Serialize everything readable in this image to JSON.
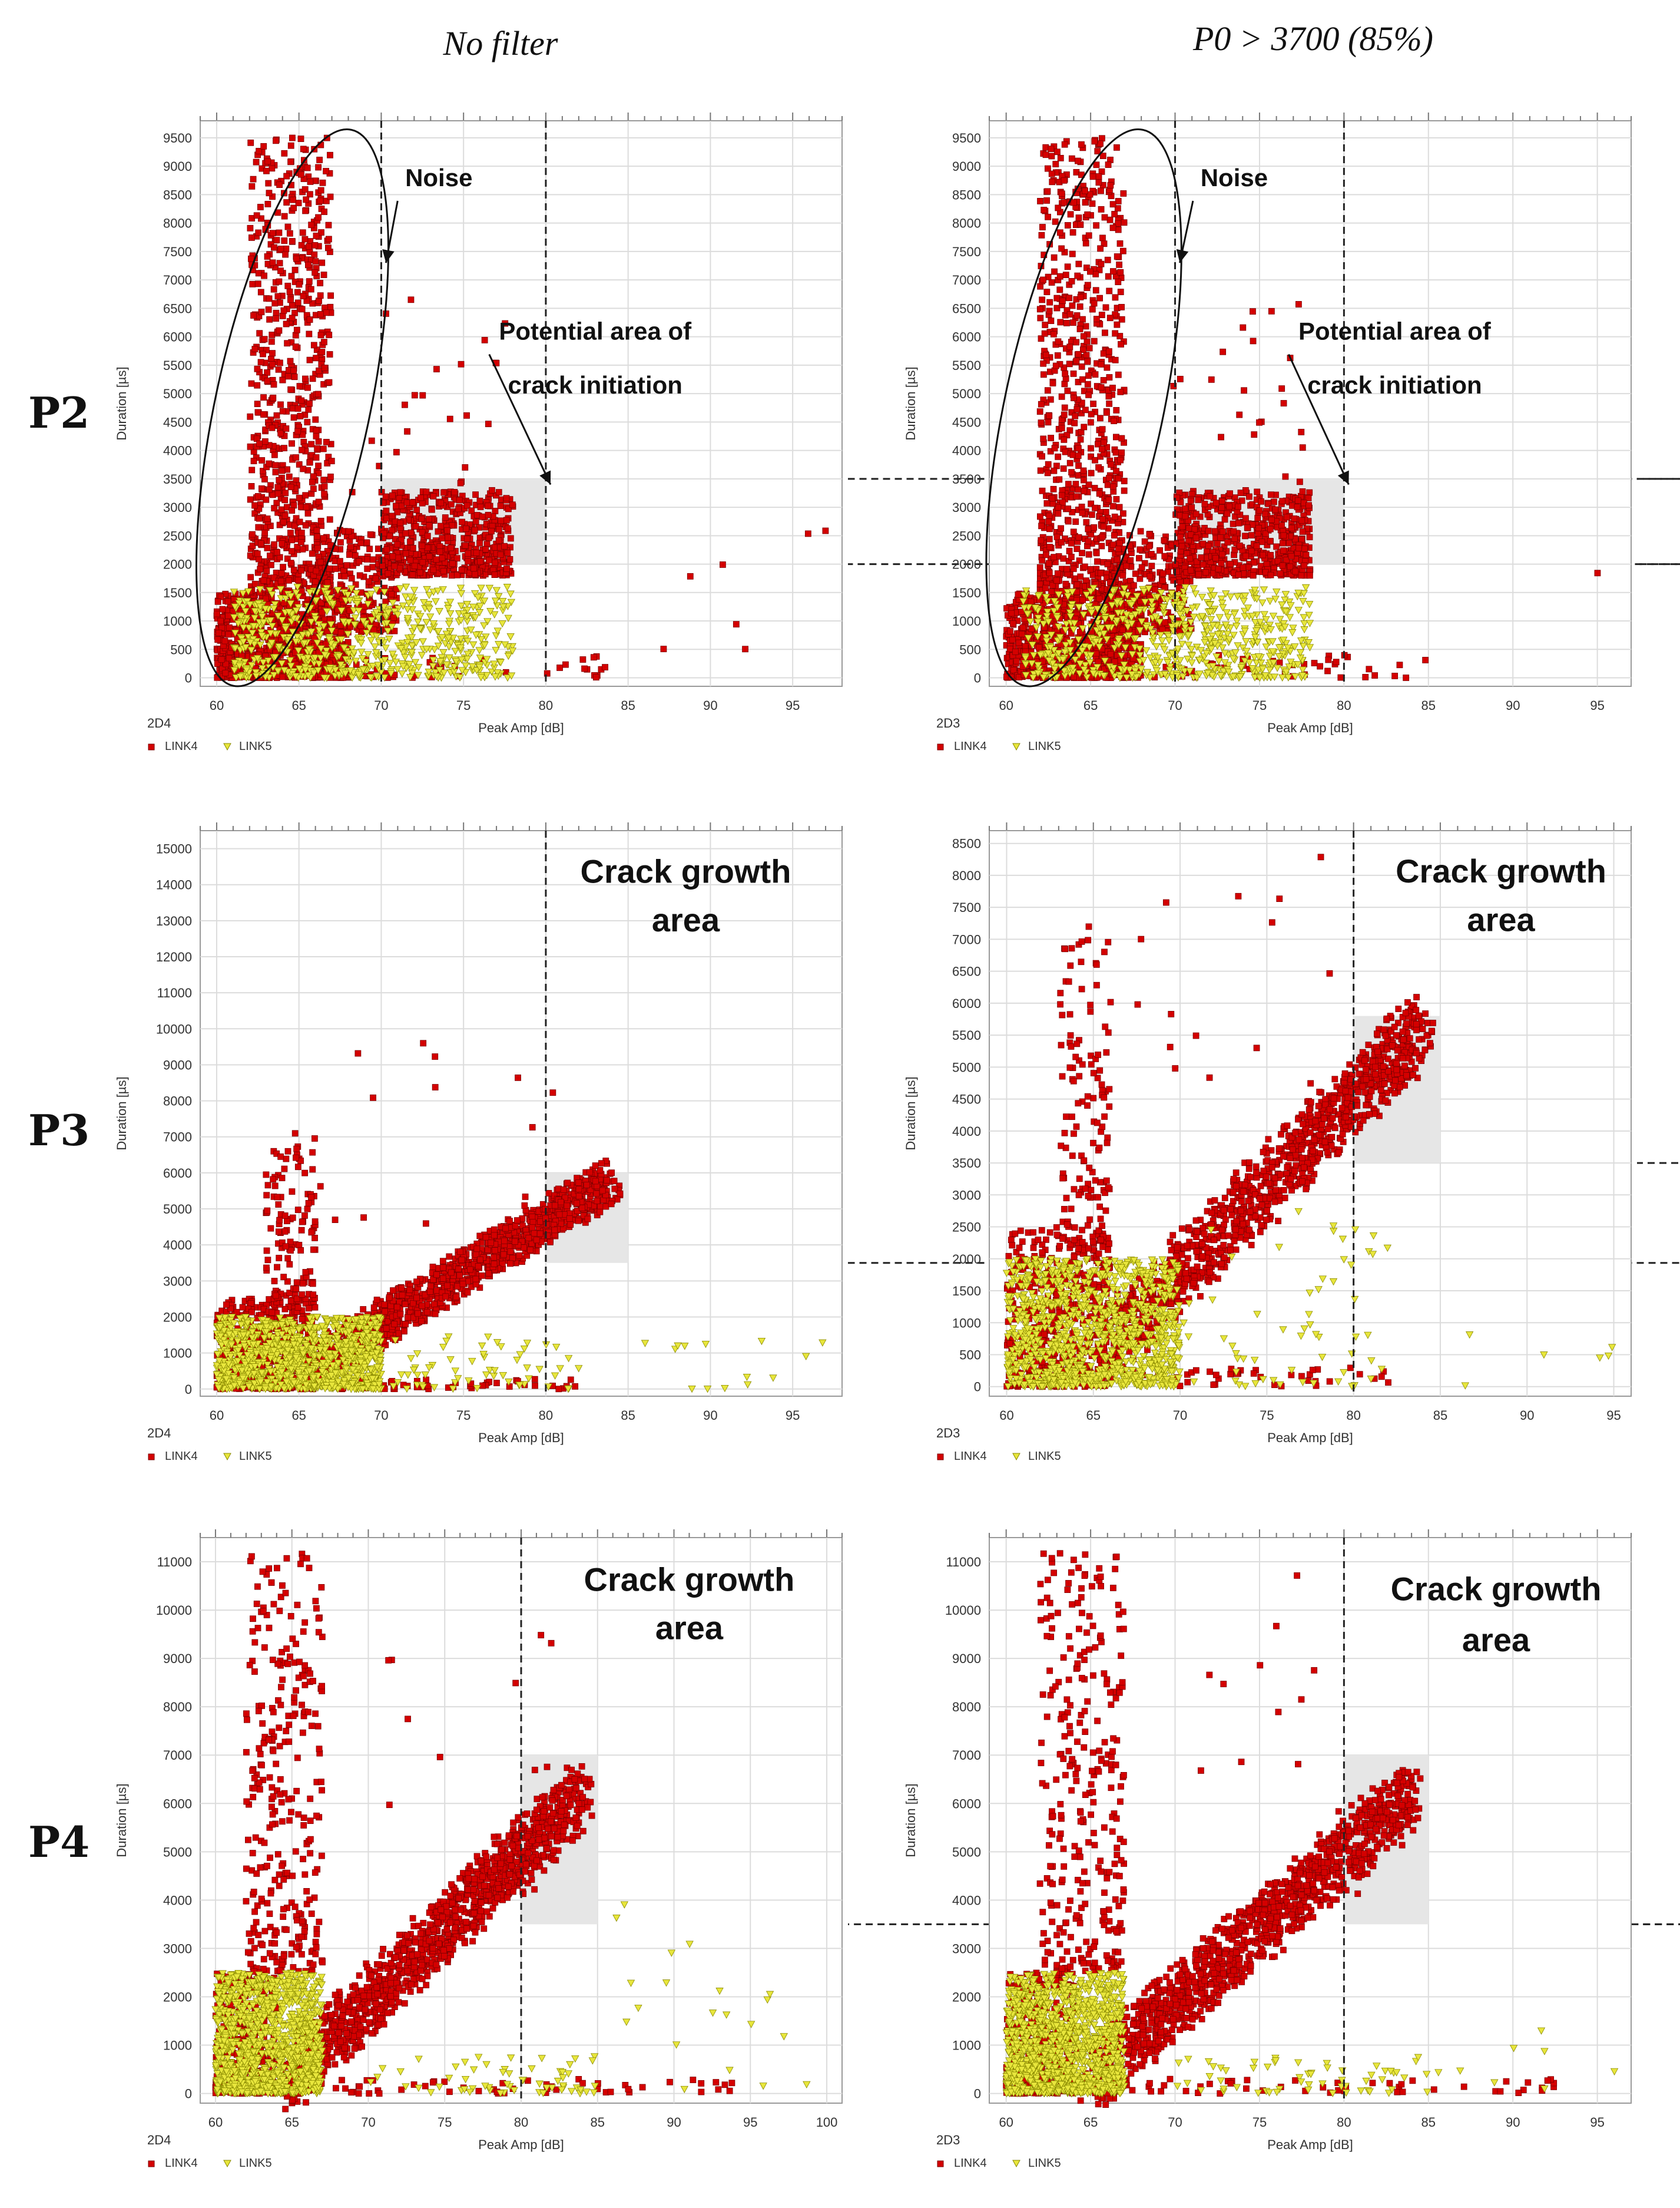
{
  "column_headers": [
    "No filter",
    "P0 > 3700 (85%)"
  ],
  "row_labels": [
    "P2",
    "P3",
    "P4"
  ],
  "colors": {
    "link4": "#d40000",
    "link5": "#e8e63c",
    "link4_stroke": "#7a0000",
    "link5_stroke": "#8a8a00",
    "highlight": "#e6e6e6"
  },
  "chart_data": [
    {
      "type": "scatter",
      "row": "P2",
      "column": "No filter",
      "corner_label": "2D4",
      "xlabel": "Peak Amp [dB]",
      "ylabel": "Duration [µs]",
      "xlim": [
        59,
        98
      ],
      "ylim": [
        -150,
        9800
      ],
      "xticks": [
        60,
        65,
        70,
        75,
        80,
        85,
        90,
        95
      ],
      "yticks": [
        0,
        500,
        1000,
        1500,
        2000,
        2500,
        3000,
        3500,
        4000,
        4500,
        5000,
        5500,
        6000,
        6500,
        7000,
        7500,
        8000,
        8500,
        9000,
        9500
      ],
      "legend": [
        "LINK4",
        "LINK5"
      ],
      "ref_lines": {
        "v": [
          70,
          80
        ],
        "h": [
          2000,
          3500
        ]
      },
      "highlight_box": {
        "x0": 70,
        "x1": 80,
        "y0": 2000,
        "y1": 3500
      },
      "noise_ellipse": {
        "cx": 64.6,
        "cy": 4750,
        "rx": 4.7,
        "ry": 5000,
        "rot": 12
      },
      "annotations": [
        {
          "text": "Noise",
          "x": 73.5,
          "y": 8650,
          "arrow_to": [
            70,
            7300
          ]
        },
        {
          "text": "Potential area of",
          "x": 83,
          "y": 5950,
          "arrow_to": [
            80,
            3400
          ]
        },
        {
          "text": "crack initiation",
          "x": 83,
          "y": 5000
        }
      ],
      "series": [
        {
          "name": "LINK4",
          "clusters": [
            {
              "x": [
                60,
                68
              ],
              "y": [
                0,
                1500
              ],
              "n": 900
            },
            {
              "x": [
                62,
                67
              ],
              "y": [
                1500,
                9500
              ],
              "n": 750
            },
            {
              "x": [
                66,
                71
              ],
              "y": [
                800,
                2600
              ],
              "n": 250
            },
            {
              "x": [
                70,
                78
              ],
              "y": [
                1800,
                3300
              ],
              "n": 550
            },
            {
              "x": [
                68,
                78
              ],
              "y": [
                3000,
                6700
              ],
              "n": 25
            },
            {
              "x": [
                60,
                85
              ],
              "y": [
                0,
                400
              ],
              "n": 70
            },
            {
              "x": [
                85,
                97
              ],
              "y": [
                500,
                2700
              ],
              "n": 7
            }
          ]
        },
        {
          "name": "LINK5",
          "clusters": [
            {
              "x": [
                61,
                78
              ],
              "y": [
                0,
                1600
              ],
              "n": 650
            }
          ]
        }
      ]
    },
    {
      "type": "scatter",
      "row": "P2",
      "column": "P0 > 3700 (85%)",
      "corner_label": "2D3",
      "xlabel": "Peak Amp [dB]",
      "ylabel": "Duration [µs]",
      "xlim": [
        59,
        97
      ],
      "ylim": [
        -150,
        9800
      ],
      "xticks": [
        60,
        65,
        70,
        75,
        80,
        85,
        90,
        95
      ],
      "yticks": [
        0,
        500,
        1000,
        1500,
        2000,
        2500,
        3000,
        3500,
        4000,
        4500,
        5000,
        5500,
        6000,
        6500,
        7000,
        7500,
        8000,
        8500,
        9000,
        9500
      ],
      "legend": [
        "LINK4",
        "LINK5"
      ],
      "ref_lines": {
        "v": [
          70,
          80
        ],
        "h": [
          2000,
          3500
        ]
      },
      "highlight_box": {
        "x0": 70,
        "x1": 80,
        "y0": 2000,
        "y1": 3500
      },
      "noise_ellipse": {
        "cx": 64.6,
        "cy": 4750,
        "rx": 4.7,
        "ry": 5000,
        "rot": 12
      },
      "annotations": [
        {
          "text": "Noise",
          "x": 73.5,
          "y": 8650,
          "arrow_to": [
            70,
            7300
          ]
        },
        {
          "text": "Potential area of",
          "x": 83,
          "y": 5950,
          "arrow_to": [
            80,
            3400
          ]
        },
        {
          "text": "crack initiation",
          "x": 83,
          "y": 5000
        }
      ],
      "series": [
        {
          "name": "LINK4",
          "clusters": [
            {
              "x": [
                60,
                68
              ],
              "y": [
                0,
                1500
              ],
              "n": 900
            },
            {
              "x": [
                62,
                67
              ],
              "y": [
                1500,
                9500
              ],
              "n": 750
            },
            {
              "x": [
                66,
                71
              ],
              "y": [
                800,
                2600
              ],
              "n": 250
            },
            {
              "x": [
                70,
                78
              ],
              "y": [
                1800,
                3300
              ],
              "n": 550
            },
            {
              "x": [
                68,
                78
              ],
              "y": [
                3000,
                6700
              ],
              "n": 25
            },
            {
              "x": [
                60,
                85
              ],
              "y": [
                0,
                400
              ],
              "n": 70
            },
            {
              "x": [
                95,
                96
              ],
              "y": [
                1800,
                2000
              ],
              "n": 1
            }
          ]
        },
        {
          "name": "LINK5",
          "clusters": [
            {
              "x": [
                61,
                78
              ],
              "y": [
                0,
                1600
              ],
              "n": 650
            }
          ]
        }
      ]
    },
    {
      "type": "scatter",
      "row": "P3",
      "column": "No filter",
      "corner_label": "2D4",
      "xlabel": "Peak Amp [dB]",
      "ylabel": "Duration [µs]",
      "xlim": [
        59,
        98
      ],
      "ylim": [
        -200,
        15500
      ],
      "xticks": [
        60,
        65,
        70,
        75,
        80,
        85,
        90,
        95
      ],
      "yticks": [
        0,
        1000,
        2000,
        3000,
        4000,
        5000,
        6000,
        7000,
        8000,
        9000,
        10000,
        11000,
        12000,
        13000,
        14000,
        15000
      ],
      "legend": [
        "LINK4",
        "LINK5"
      ],
      "ref_lines": {
        "v": [
          80
        ],
        "h": [
          3500
        ]
      },
      "highlight_box": {
        "x0": 80,
        "x1": 85,
        "y0": 3500,
        "y1": 6000
      },
      "annotations": [
        {
          "text": "Crack growth",
          "x": 88.5,
          "y": 14050
        },
        {
          "text": "area",
          "x": 88.5,
          "y": 12700
        }
      ],
      "series": [
        {
          "name": "LINK4",
          "clusters": [
            {
              "x": [
                60,
                66
              ],
              "y": [
                0,
                2500
              ],
              "n": 500
            },
            {
              "x": [
                63,
                66
              ],
              "y": [
                2500,
                7200
              ],
              "n": 120
            },
            {
              "x": [
                66,
                84
              ],
              "y": [
                700,
                5800
              ],
              "n": 1100,
              "diag": true
            },
            {
              "x": [
                66,
                82
              ],
              "y": [
                4000,
                9800
              ],
              "n": 15
            },
            {
              "x": [
                60,
                82
              ],
              "y": [
                0,
                300
              ],
              "n": 60
            }
          ]
        },
        {
          "name": "LINK5",
          "clusters": [
            {
              "x": [
                60,
                70
              ],
              "y": [
                0,
                2000
              ],
              "n": 1100
            },
            {
              "x": [
                70,
                82
              ],
              "y": [
                0,
                1500
              ],
              "n": 60
            },
            {
              "x": [
                86,
                97
              ],
              "y": [
                0,
                1400
              ],
              "n": 14
            }
          ]
        }
      ]
    },
    {
      "type": "scatter",
      "row": "P3",
      "column": "P0 > 3700 (85%)",
      "corner_label": "2D3",
      "xlabel": "Peak Amp [dB]",
      "ylabel": "Duration [µs]",
      "xlim": [
        59,
        96
      ],
      "ylim": [
        -150,
        8700
      ],
      "xticks": [
        60,
        65,
        70,
        75,
        80,
        85,
        90,
        95
      ],
      "yticks": [
        0,
        500,
        1000,
        1500,
        2000,
        2500,
        3000,
        3500,
        4000,
        4500,
        5000,
        5500,
        6000,
        6500,
        7000,
        7500,
        8000,
        8500
      ],
      "legend": [
        "LINK4",
        "LINK5"
      ],
      "ref_lines": {
        "v": [
          80
        ],
        "h": [
          3500
        ]
      },
      "highlight_box": {
        "x0": 80,
        "x1": 85,
        "y0": 3500,
        "y1": 5800
      },
      "annotations": [
        {
          "text": "Crack growth",
          "x": 88.5,
          "y": 7890
        },
        {
          "text": "area",
          "x": 88.5,
          "y": 7130
        }
      ],
      "series": [
        {
          "name": "LINK4",
          "clusters": [
            {
              "x": [
                60,
                66
              ],
              "y": [
                0,
                2500
              ],
              "n": 500
            },
            {
              "x": [
                63,
                66
              ],
              "y": [
                2500,
                7200
              ],
              "n": 120
            },
            {
              "x": [
                66,
                84
              ],
              "y": [
                700,
                5600
              ],
              "n": 1100,
              "diag": true
            },
            {
              "x": [
                66,
                80
              ],
              "y": [
                4000,
                8400
              ],
              "n": 15
            },
            {
              "x": [
                60,
                82
              ],
              "y": [
                0,
                300
              ],
              "n": 60
            }
          ]
        },
        {
          "name": "LINK5",
          "clusters": [
            {
              "x": [
                60,
                70
              ],
              "y": [
                0,
                2000
              ],
              "n": 1100
            },
            {
              "x": [
                70,
                82
              ],
              "y": [
                0,
                2800
              ],
              "n": 60
            },
            {
              "x": [
                86,
                95
              ],
              "y": [
                0,
                1100
              ],
              "n": 6
            }
          ]
        }
      ]
    },
    {
      "type": "scatter",
      "row": "P4",
      "column": "No filter",
      "corner_label": "2D4",
      "xlabel": "Peak Amp [dB]",
      "ylabel": "Duration [µs]",
      "xlim": [
        59,
        101
      ],
      "ylim": [
        -200,
        11500
      ],
      "xticks": [
        60,
        65,
        70,
        75,
        80,
        85,
        90,
        95,
        100
      ],
      "yticks": [
        0,
        1000,
        2000,
        3000,
        4000,
        5000,
        6000,
        7000,
        8000,
        9000,
        10000,
        11000
      ],
      "legend": [
        "LINK4",
        "LINK5"
      ],
      "ref_lines": {
        "v": [
          80
        ],
        "h": [
          3500
        ]
      },
      "highlight_box": {
        "x0": 80,
        "x1": 85,
        "y0": 3500,
        "y1": 7000
      },
      "annotations": [
        {
          "text": "Crack growth",
          "x": 91,
          "y": 10400
        },
        {
          "text": "area",
          "x": 91,
          "y": 9400
        }
      ],
      "series": [
        {
          "name": "LINK4",
          "clusters": [
            {
              "x": [
                60,
                64
              ],
              "y": [
                0,
                2500
              ],
              "n": 400
            },
            {
              "x": [
                62,
                67
              ],
              "y": [
                2500,
                11200
              ],
              "n": 300
            },
            {
              "x": [
                65,
                84
              ],
              "y": [
                300,
                6200
              ],
              "n": 1200,
              "diag": true
            },
            {
              "x": [
                70,
                82
              ],
              "y": [
                4000,
                11000
              ],
              "n": 15
            },
            {
              "x": [
                60,
                94
              ],
              "y": [
                0,
                300
              ],
              "n": 70
            }
          ]
        },
        {
          "name": "LINK5",
          "clusters": [
            {
              "x": [
                60,
                67
              ],
              "y": [
                0,
                2500
              ],
              "n": 1200
            },
            {
              "x": [
                70,
                85
              ],
              "y": [
                0,
                800
              ],
              "n": 60
            },
            {
              "x": [
                85,
                100
              ],
              "y": [
                0,
                4000
              ],
              "n": 20
            }
          ]
        }
      ]
    },
    {
      "type": "scatter",
      "row": "P4",
      "column": "P0 > 3700 (85%)",
      "corner_label": "2D3",
      "xlabel": "Peak Amp [dB]",
      "ylabel": "Duration [µs]",
      "xlim": [
        59,
        97
      ],
      "ylim": [
        -200,
        11500
      ],
      "xticks": [
        60,
        65,
        70,
        75,
        80,
        85,
        90,
        95
      ],
      "yticks": [
        0,
        1000,
        2000,
        3000,
        4000,
        5000,
        6000,
        7000,
        8000,
        9000,
        10000,
        11000
      ],
      "legend": [
        "LINK4",
        "LINK5"
      ],
      "ref_lines": {
        "v": [
          80
        ],
        "h": [
          3500
        ]
      },
      "highlight_box": {
        "x0": 80,
        "x1": 85,
        "y0": 3500,
        "y1": 7000
      },
      "annotations": [
        {
          "text": "Crack growth",
          "x": 89,
          "y": 10200
        },
        {
          "text": "area",
          "x": 89,
          "y": 9150
        }
      ],
      "series": [
        {
          "name": "LINK4",
          "clusters": [
            {
              "x": [
                60,
                64
              ],
              "y": [
                0,
                2500
              ],
              "n": 400
            },
            {
              "x": [
                62,
                67
              ],
              "y": [
                2500,
                11200
              ],
              "n": 300
            },
            {
              "x": [
                65,
                84
              ],
              "y": [
                300,
                6200
              ],
              "n": 1200,
              "diag": true
            },
            {
              "x": [
                70,
                82
              ],
              "y": [
                4000,
                11100
              ],
              "n": 15
            },
            {
              "x": [
                60,
                94
              ],
              "y": [
                0,
                300
              ],
              "n": 70
            }
          ]
        },
        {
          "name": "LINK5",
          "clusters": [
            {
              "x": [
                60,
                67
              ],
              "y": [
                0,
                2500
              ],
              "n": 1200
            },
            {
              "x": [
                70,
                85
              ],
              "y": [
                0,
                800
              ],
              "n": 60
            },
            {
              "x": [
                85,
                97
              ],
              "y": [
                0,
                1400
              ],
              "n": 8
            }
          ]
        }
      ]
    }
  ]
}
